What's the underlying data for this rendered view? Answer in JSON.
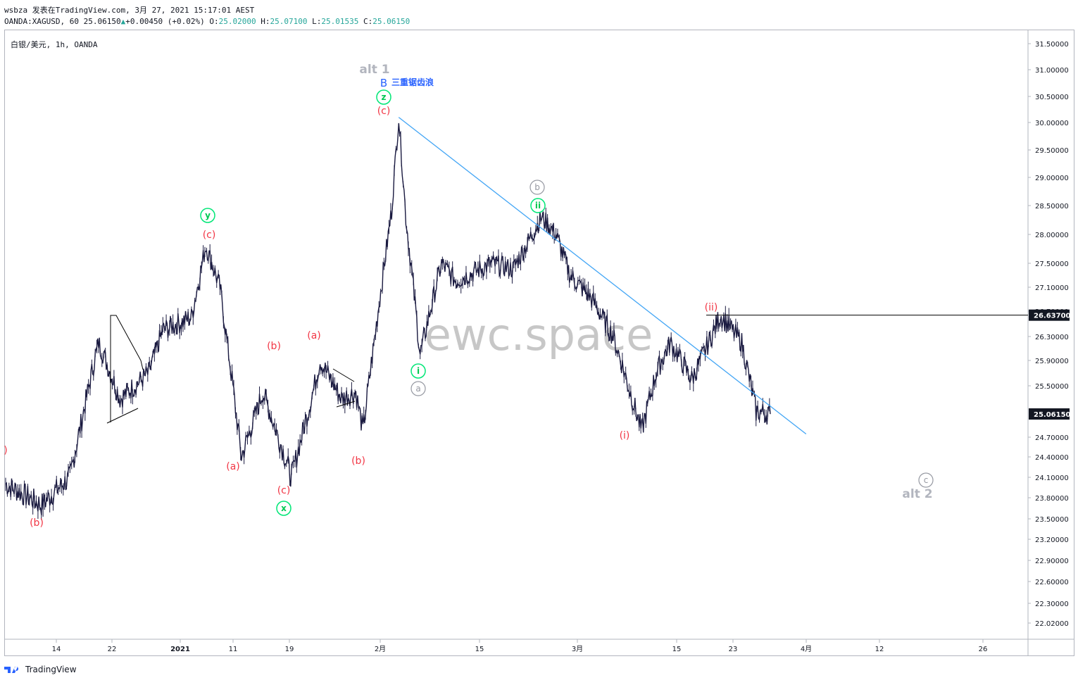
{
  "header": {
    "line1": "wsbza 发表在TradingView.com, 3月 27, 2021 15:17:01 AEST",
    "symbol": "OANDA:XAGUSD, 60 25.06150",
    "change": "+0.00450 (+0.02%)",
    "o_label": "O:",
    "o_val": "25.02000",
    "h_label": "H:",
    "h_val": "25.07100",
    "l_label": "L:",
    "l_val": "25.01535",
    "c_label": "C:",
    "c_val": "25.06150"
  },
  "symbol_label": "白银/美元, 1h, OANDA",
  "watermark": "ewc.space",
  "footer": {
    "brand": "TradingView"
  },
  "chart_data": {
    "type": "line",
    "series": [
      {
        "x": [
          "12-09",
          "12-14",
          "12-18",
          "12-22",
          "12-25",
          "12-29",
          "12-31",
          "01-04",
          "01-06",
          "01-08",
          "01-11",
          "01-14",
          "01-18",
          "01-21",
          "01-22",
          "01-25",
          "01-27",
          "01-28",
          "02-01",
          "02-02",
          "02-03",
          "02-05",
          "02-08",
          "02-10",
          "02-15",
          "02-18",
          "02-22",
          "02-24",
          "02-26",
          "03-01",
          "03-04",
          "03-08",
          "03-10",
          "03-12",
          "03-15",
          "03-17",
          "03-19",
          "03-22",
          "03-24",
          "03-26"
        ],
        "values": [
          24.0,
          23.7,
          24.1,
          26.2,
          25.3,
          25.7,
          26.4,
          26.6,
          27.8,
          27.1,
          24.4,
          25.4,
          24.1,
          25.4,
          25.9,
          25.3,
          25.4,
          24.8,
          28.4,
          30.1,
          28.3,
          26.0,
          27.5,
          27.2,
          27.5,
          27.4,
          28.3,
          28.0,
          27.3,
          26.9,
          26.3,
          24.8,
          25.7,
          26.2,
          25.6,
          26.1,
          26.637,
          26.2,
          25.1,
          25.06
        ]
      }
    ],
    "yaxis_ticks": [
      "31.50000",
      "31.00000",
      "30.50000",
      "30.00000",
      "29.50000",
      "29.00000",
      "28.50000",
      "28.00000",
      "27.50000",
      "27.10000",
      "26.70000",
      "26.30000",
      "25.90000",
      "25.50000",
      "24.70000",
      "24.40000",
      "24.10000",
      "23.80000",
      "23.50000",
      "23.20000",
      "22.90000",
      "22.60000",
      "22.30000",
      "22.02000"
    ],
    "xaxis_ticks": [
      "14",
      "22",
      "2021",
      "11",
      "19",
      "2月",
      "15",
      "3月",
      "15",
      "23",
      "4月",
      "12",
      "26"
    ],
    "price_tags": [
      {
        "label": "26.63700",
        "bg": "#131722"
      },
      {
        "label": "25.06150",
        "bg": "#131722"
      }
    ],
    "horizontal_level": 26.637,
    "trendline": {
      "from": {
        "x": "02-02",
        "y": 30.1
      },
      "to": {
        "x": "03-31",
        "y": 24.75
      },
      "color": "#42a5f5"
    },
    "annotations": {
      "red": [
        "(b)",
        "(c)",
        "(a)",
        "(b)",
        "(c)",
        "(a)",
        "(b)",
        "(c)",
        "(i)",
        "(ii)",
        ")"
      ],
      "green_circled": [
        "y",
        "x",
        "z",
        "i",
        "ii"
      ],
      "gray_circled": [
        "a",
        "b",
        "c"
      ],
      "gray_text": [
        "alt 1",
        "alt 2"
      ],
      "blue_text": [
        "B",
        "三重锯齿浪"
      ]
    },
    "colors": {
      "candles": "#1a1a40",
      "red": "#f23645",
      "green": "#00e676",
      "gray": "#9598a1",
      "blue": "#2962ff",
      "trend": "#42a5f5"
    }
  }
}
